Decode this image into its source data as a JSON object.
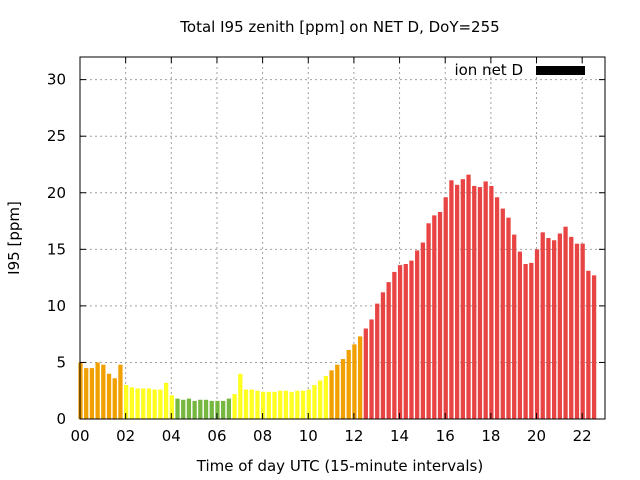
{
  "chart_data": {
    "type": "bar",
    "title": "Total I95 zenith [ppm] on NET D, DoY=255",
    "xlabel": "Time of day UTC (15-minute intervals)",
    "ylabel": "I95 [ppm]",
    "ylim": [
      0,
      32
    ],
    "xlim": [
      0,
      23
    ],
    "xticks": [
      "00",
      "02",
      "04",
      "06",
      "08",
      "10",
      "12",
      "14",
      "16",
      "18",
      "20",
      "22"
    ],
    "yticks": [
      "0",
      "5",
      "10",
      "15",
      "20",
      "25",
      "30"
    ],
    "grid": true,
    "legend": {
      "position": "top-right",
      "label": "ion net D",
      "color": "#000000"
    },
    "colors": {
      "orange": "#f0a000",
      "yellow": "#ffff20",
      "green": "#76b740",
      "red": "#e84444"
    },
    "series": [
      {
        "interval_hours": 0.25,
        "values": [
          5.0,
          4.5,
          4.5,
          5.0,
          4.8,
          4.0,
          3.6,
          4.8,
          3.0,
          2.8,
          2.7,
          2.7,
          2.7,
          2.6,
          2.6,
          3.2,
          2.1,
          1.8,
          1.7,
          1.8,
          1.6,
          1.7,
          1.7,
          1.6,
          1.6,
          1.6,
          1.8,
          2.2,
          4.0,
          2.6,
          2.6,
          2.5,
          2.4,
          2.4,
          2.4,
          2.5,
          2.5,
          2.4,
          2.5,
          2.5,
          2.6,
          3.0,
          3.4,
          3.8,
          4.3,
          4.8,
          5.3,
          6.1,
          6.6,
          7.3,
          8.0,
          8.8,
          10.2,
          11.2,
          12.1,
          13.0,
          13.6,
          13.7,
          14.0,
          14.9,
          15.6,
          17.3,
          18.0,
          18.3,
          19.6,
          21.1,
          20.7,
          21.2,
          21.6,
          20.6,
          20.5,
          21.0,
          20.6,
          19.6,
          18.6,
          17.8,
          16.3,
          14.8,
          13.7,
          13.8,
          15.0,
          16.5,
          16.0,
          15.8,
          16.4,
          17.0,
          16.1,
          15.5,
          15.5,
          13.1,
          12.7
        ],
        "colors": [
          "orange",
          "orange",
          "orange",
          "orange",
          "orange",
          "orange",
          "orange",
          "orange",
          "yellow",
          "yellow",
          "yellow",
          "yellow",
          "yellow",
          "yellow",
          "yellow",
          "yellow",
          "yellow",
          "green",
          "green",
          "green",
          "green",
          "green",
          "green",
          "green",
          "green",
          "green",
          "green",
          "yellow",
          "yellow",
          "yellow",
          "yellow",
          "yellow",
          "yellow",
          "yellow",
          "yellow",
          "yellow",
          "yellow",
          "yellow",
          "yellow",
          "yellow",
          "yellow",
          "yellow",
          "yellow",
          "yellow",
          "orange",
          "orange",
          "orange",
          "orange",
          "orange",
          "orange",
          "red",
          "red",
          "red",
          "red",
          "red",
          "red",
          "red",
          "red",
          "red",
          "red",
          "red",
          "red",
          "red",
          "red",
          "red",
          "red",
          "red",
          "red",
          "red",
          "red",
          "red",
          "red",
          "red",
          "red",
          "red",
          "red",
          "red",
          "red",
          "red",
          "red",
          "red",
          "red",
          "red",
          "red",
          "red",
          "red",
          "red",
          "red",
          "red",
          "red",
          "red"
        ]
      }
    ]
  }
}
